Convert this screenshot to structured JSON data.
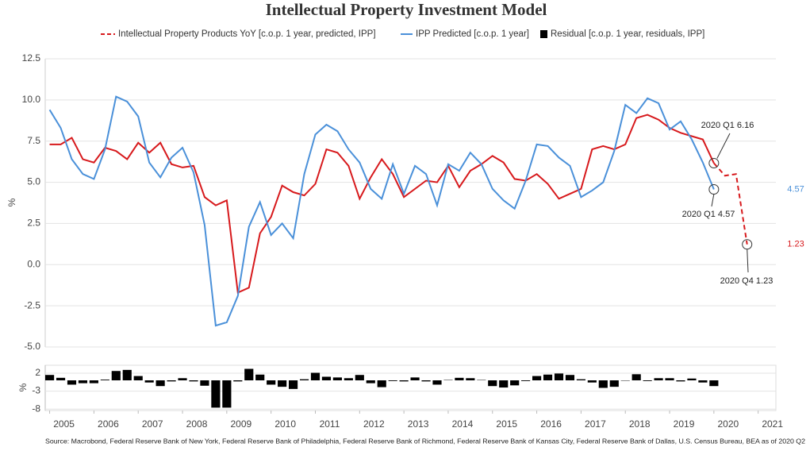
{
  "chart_data": [
    {
      "type": "line",
      "title": "Intellectual Property Investment Model",
      "y_label": "%",
      "x": [
        "2005 Q1",
        "2005 Q2",
        "2005 Q3",
        "2005 Q4",
        "2006 Q1",
        "2006 Q2",
        "2006 Q3",
        "2006 Q4",
        "2007 Q1",
        "2007 Q2",
        "2007 Q3",
        "2007 Q4",
        "2008 Q1",
        "2008 Q2",
        "2008 Q3",
        "2008 Q4",
        "2009 Q1",
        "2009 Q2",
        "2009 Q3",
        "2009 Q4",
        "2010 Q1",
        "2010 Q2",
        "2010 Q3",
        "2010 Q4",
        "2011 Q1",
        "2011 Q2",
        "2011 Q3",
        "2011 Q4",
        "2012 Q1",
        "2012 Q2",
        "2012 Q3",
        "2012 Q4",
        "2013 Q1",
        "2013 Q2",
        "2013 Q3",
        "2013 Q4",
        "2014 Q1",
        "2014 Q2",
        "2014 Q3",
        "2014 Q4",
        "2015 Q1",
        "2015 Q2",
        "2015 Q3",
        "2015 Q4",
        "2016 Q1",
        "2016 Q2",
        "2016 Q3",
        "2016 Q4",
        "2017 Q1",
        "2017 Q2",
        "2017 Q3",
        "2017 Q4",
        "2018 Q1",
        "2018 Q2",
        "2018 Q3",
        "2018 Q4",
        "2019 Q1",
        "2019 Q2",
        "2019 Q3",
        "2019 Q4",
        "2020 Q1",
        "2020 Q2",
        "2020 Q3",
        "2020 Q4"
      ],
      "series": [
        {
          "name": "Intellectual Property Products YoY [c.o.p. 1 year, predicted, IPP]",
          "color": "#d7191c",
          "dashed_from": "2020 Q1",
          "values": [
            7.3,
            7.3,
            7.7,
            6.4,
            6.2,
            7.1,
            6.9,
            6.4,
            7.4,
            6.8,
            7.4,
            6.1,
            5.9,
            6.0,
            4.1,
            3.6,
            3.9,
            -1.7,
            -1.4,
            1.9,
            2.9,
            4.8,
            4.4,
            4.2,
            4.9,
            7.0,
            6.8,
            6.0,
            4.0,
            5.3,
            6.4,
            5.5,
            4.1,
            4.6,
            5.1,
            5.0,
            6.0,
            4.7,
            5.7,
            6.1,
            6.6,
            6.2,
            5.2,
            5.1,
            5.5,
            4.9,
            4.0,
            4.3,
            4.6,
            7.0,
            7.2,
            7.0,
            7.3,
            8.9,
            9.1,
            8.8,
            8.3,
            8.0,
            7.8,
            7.6,
            6.16,
            5.4,
            5.5,
            1.23
          ]
        },
        {
          "name": "IPP Predicted [c.o.p. 1 year]",
          "color": "#4a90d9",
          "values": [
            9.4,
            8.3,
            6.4,
            5.5,
            5.2,
            7.0,
            10.2,
            9.9,
            9.0,
            6.2,
            5.3,
            6.5,
            7.1,
            5.6,
            2.4,
            -3.7,
            -3.5,
            -1.9,
            2.3,
            3.8,
            1.8,
            2.5,
            1.6,
            5.5,
            7.9,
            8.5,
            8.1,
            7.0,
            6.2,
            4.6,
            4.0,
            6.1,
            4.3,
            6.0,
            5.5,
            3.6,
            6.1,
            5.7,
            6.8,
            6.1,
            4.6,
            3.9,
            3.4,
            5.1,
            7.3,
            7.2,
            6.5,
            6.0,
            4.1,
            4.5,
            5.0,
            6.9,
            9.7,
            9.2,
            10.1,
            9.8,
            8.2,
            8.7,
            7.6,
            6.2,
            4.57,
            null,
            null,
            null
          ]
        }
      ],
      "annotations": [
        {
          "text": "2020 Q1 6.16"
        },
        {
          "text": "2020 Q1 4.57"
        },
        {
          "text": "2020 Q4 1.23"
        }
      ],
      "xlim": [
        2004.9,
        2021.4
      ],
      "ylim": [
        -5.0,
        12.5
      ],
      "yticks": [
        {
          "value": -5,
          "label": "-5.0"
        },
        {
          "value": -2.5,
          "label": "-2.5"
        },
        {
          "value": 0,
          "label": "0.0"
        },
        {
          "value": 2.5,
          "label": "2.5"
        },
        {
          "value": 5,
          "label": "5.0"
        },
        {
          "value": 7.5,
          "label": "7.5"
        },
        {
          "value": 10,
          "label": "10.0"
        },
        {
          "value": 12.5,
          "label": "12.5"
        }
      ],
      "grid": true
    },
    {
      "type": "bar",
      "y_label": "%",
      "x": [
        "2005 Q1",
        "2005 Q2",
        "2005 Q3",
        "2005 Q4",
        "2006 Q1",
        "2006 Q2",
        "2006 Q3",
        "2006 Q4",
        "2007 Q1",
        "2007 Q2",
        "2007 Q3",
        "2007 Q4",
        "2008 Q1",
        "2008 Q2",
        "2008 Q3",
        "2008 Q4",
        "2009 Q1",
        "2009 Q2",
        "2009 Q3",
        "2009 Q4",
        "2010 Q1",
        "2010 Q2",
        "2010 Q3",
        "2010 Q4",
        "2011 Q1",
        "2011 Q2",
        "2011 Q3",
        "2011 Q4",
        "2012 Q1",
        "2012 Q2",
        "2012 Q3",
        "2012 Q4",
        "2013 Q1",
        "2013 Q2",
        "2013 Q3",
        "2013 Q4",
        "2014 Q1",
        "2014 Q2",
        "2014 Q3",
        "2014 Q4",
        "2015 Q1",
        "2015 Q2",
        "2015 Q3",
        "2015 Q4",
        "2016 Q1",
        "2016 Q2",
        "2016 Q3",
        "2016 Q4",
        "2017 Q1",
        "2017 Q2",
        "2017 Q3",
        "2017 Q4",
        "2018 Q1",
        "2018 Q2",
        "2018 Q3",
        "2018 Q4",
        "2019 Q1",
        "2019 Q2",
        "2019 Q3",
        "2019 Q4",
        "2020 Q1"
      ],
      "series": [
        {
          "name": "Residual [c.o.p. 1 year, residuals, IPP]",
          "color": "#000000",
          "values": [
            1.5,
            0.7,
            -1.2,
            -0.8,
            -0.8,
            0.2,
            2.6,
            2.9,
            1.2,
            -0.6,
            -1.6,
            -0.3,
            0.6,
            -0.3,
            -1.5,
            -7.6,
            -7.6,
            -0.3,
            3.2,
            1.6,
            -1.2,
            -1.8,
            -2.4,
            0.3,
            2.1,
            1.0,
            0.8,
            0.6,
            1.5,
            -0.8,
            -1.9,
            -0.2,
            -0.3,
            0.8,
            -0.3,
            -1.2,
            0.1,
            0.7,
            0.6,
            0.1,
            -1.6,
            -2.0,
            -1.4,
            -0.2,
            1.2,
            1.6,
            1.9,
            1.5,
            0.3,
            -0.6,
            -2.1,
            -1.8,
            -0.1,
            1.7,
            -0.2,
            0.6,
            0.6,
            -0.3,
            0.5,
            -0.6,
            -1.6
          ]
        }
      ],
      "xlim": [
        2004.9,
        2021.4
      ],
      "xticks": [
        2005,
        2006,
        2007,
        2008,
        2009,
        2010,
        2011,
        2012,
        2013,
        2014,
        2015,
        2016,
        2017,
        2018,
        2019,
        2020,
        2021
      ],
      "ylim": [
        -8.4,
        4.2
      ],
      "yticks": [
        -8,
        -3,
        2
      ],
      "grid": true,
      "source": "Source: Macrobond, Federal Reserve Bank of New York, Federal Reserve Bank of Philadelphia, Federal Reserve Bank of Richmond, Federal Reserve Bank of Kansas City, Federal Reserve Bank of Dallas, U.S. Census Bureau, BEA as of 2020 Q2"
    }
  ]
}
